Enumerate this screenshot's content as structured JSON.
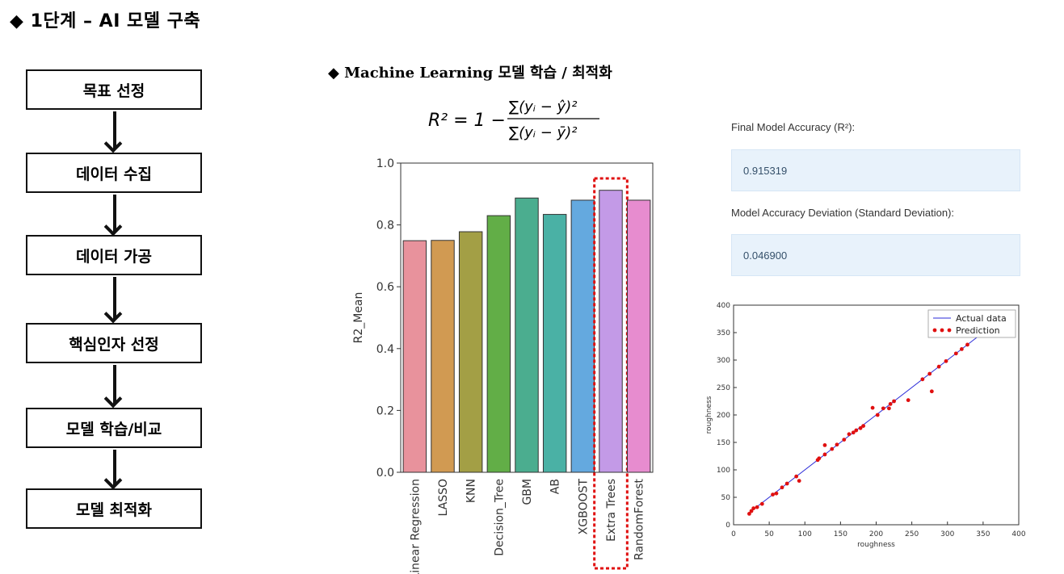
{
  "title": "◆ 1단계 – AI 모델 구축",
  "flow": {
    "steps": [
      {
        "label": "목표 선정",
        "color": "#acd6f2"
      },
      {
        "label": "데이터 수집",
        "color": "#acd6f2"
      },
      {
        "label": "데이터 가공",
        "color": "#acd6f2"
      },
      {
        "label": "핵심인자 선정",
        "color": "#acd6f2"
      },
      {
        "label": "모델 학습/비교",
        "color": "#fdc002"
      },
      {
        "label": "모델 최적화",
        "color": "#fdc002"
      }
    ]
  },
  "subtitle": "◆   Machine Learning 모델 학습 /  최적화",
  "formula": "R² = 1 − Σ(yᵢ − ŷ)² / Σ(yᵢ − ȳ)²",
  "metrics": {
    "accuracy_label": "Final Model Accuracy (R²):",
    "accuracy_value": "0.915319",
    "deviation_label": "Model Accuracy Deviation (Standard Deviation):",
    "deviation_value": "0.046900"
  },
  "chart_data": [
    {
      "type": "bar",
      "categories": [
        "Linear Regression",
        "LASSO",
        "KNN",
        "Decision_Tree",
        "GBM",
        "AB",
        "XGBOOST",
        "Extra Trees",
        "RandomForest"
      ],
      "values": [
        0.749,
        0.75,
        0.778,
        0.83,
        0.887,
        0.834,
        0.88,
        0.912,
        0.88
      ],
      "colors": [
        "#e8929c",
        "#d19a52",
        "#a39f45",
        "#62ae47",
        "#4bad8f",
        "#4ab1a5",
        "#64a9df",
        "#c39ae7",
        "#e78ccf"
      ],
      "ylabel": "R2_Mean",
      "ylim": [
        0,
        1.0
      ],
      "yticks": [
        0.0,
        0.2,
        0.4,
        0.6,
        0.8,
        1.0
      ],
      "highlight": "Extra Trees"
    },
    {
      "type": "scatter",
      "xlabel": "roughness",
      "ylabel": "roughness",
      "xlim": [
        0,
        400
      ],
      "ylim": [
        0,
        400
      ],
      "xticks": [
        0,
        50,
        100,
        150,
        200,
        250,
        300,
        350,
        400
      ],
      "yticks": [
        0,
        50,
        100,
        150,
        200,
        250,
        300,
        350,
        400
      ],
      "legend": [
        "Actual data",
        "Prediction"
      ],
      "legend_position": "top-right",
      "actual_line": {
        "x": [
          20,
          345
        ],
        "y": [
          20,
          345
        ]
      },
      "points": {
        "x": [
          22,
          25,
          28,
          33,
          40,
          55,
          60,
          68,
          75,
          88,
          92,
          118,
          120,
          128,
          128,
          138,
          145,
          155,
          162,
          168,
          172,
          178,
          182,
          195,
          202,
          210,
          218,
          220,
          225,
          245,
          265,
          275,
          278,
          288,
          298,
          312,
          320,
          328
        ],
        "y": [
          20,
          25,
          30,
          32,
          38,
          55,
          57,
          68,
          75,
          88,
          80,
          118,
          121,
          145,
          128,
          138,
          146,
          155,
          165,
          168,
          172,
          176,
          180,
          213,
          200,
          212,
          212,
          220,
          225,
          227,
          265,
          275,
          243,
          288,
          298,
          312,
          320,
          328
        ]
      }
    }
  ]
}
